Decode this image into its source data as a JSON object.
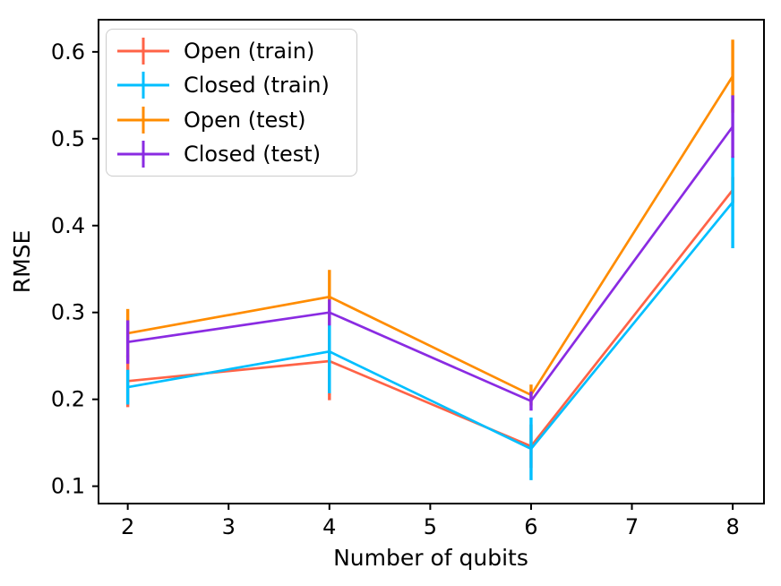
{
  "figure": {
    "background": "#ffffff",
    "text_color": "#000000",
    "axis_color": "#000000"
  },
  "chart_data": {
    "type": "line",
    "title": "",
    "xlabel": "Number of qubits",
    "ylabel": "RMSE",
    "grid": false,
    "legend_position": "top-left",
    "x": [
      2,
      4,
      6,
      8
    ],
    "xlim": [
      1.71,
      8.31
    ],
    "ylim": [
      0.08,
      0.637
    ],
    "x_ticks": [
      2,
      3,
      4,
      5,
      6,
      7,
      8
    ],
    "x_tick_labels": [
      "2",
      "3",
      "4",
      "5",
      "6",
      "7",
      "8"
    ],
    "y_ticks": [
      0.1,
      0.2,
      0.3,
      0.4,
      0.5,
      0.6
    ],
    "y_tick_labels": [
      "0.1",
      "0.2",
      "0.3",
      "0.4",
      "0.5",
      "0.6"
    ],
    "series": [
      {
        "label": "Open (train)",
        "color": "#ff6347",
        "values": [
          0.221,
          0.244,
          0.146,
          0.441
        ],
        "yerr": [
          0.03,
          0.045,
          0.025,
          0.015
        ]
      },
      {
        "label": "Closed (train)",
        "color": "#00bfff",
        "values": [
          0.214,
          0.255,
          0.143,
          0.427
        ],
        "yerr": [
          0.02,
          0.048,
          0.036,
          0.053
        ]
      },
      {
        "label": "Open (test)",
        "color": "#ff8c00",
        "values": [
          0.276,
          0.318,
          0.205,
          0.572
        ],
        "yerr": [
          0.028,
          0.031,
          0.012,
          0.042
        ]
      },
      {
        "label": "Closed (test)",
        "color": "#8a2be2",
        "values": [
          0.266,
          0.3,
          0.198,
          0.514
        ],
        "yerr": [
          0.025,
          0.015,
          0.011,
          0.036
        ]
      }
    ]
  }
}
